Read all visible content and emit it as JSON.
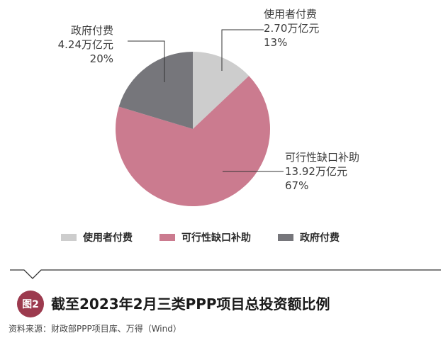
{
  "colors": {
    "government": "#76767b",
    "user": "#cdcdcd",
    "viability": "#cb7b8f",
    "badge": "#9c3a4e",
    "leader": "#333333",
    "rule": "#333333"
  },
  "chart_data": {
    "type": "pie",
    "title": "截至2023年2月三类PPP项目总投资额比例",
    "slices": [
      {
        "label": "使用者付费",
        "value": 2.7,
        "value_text": "2.70万亿元",
        "percent": 13,
        "percent_text": "13%",
        "color": "#cdcdcd"
      },
      {
        "label": "可行性缺口补助",
        "value": 13.92,
        "value_text": "13.92万亿元",
        "percent": 67,
        "percent_text": "67%",
        "color": "#cb7b8f"
      },
      {
        "label": "政府付费",
        "value": 4.24,
        "value_text": "4.24万亿元",
        "percent": 20,
        "percent_text": "20%",
        "color": "#76767b"
      }
    ],
    "legend": [
      "使用者付费",
      "可行性缺口补助",
      "政府付费"
    ],
    "legend_position": "bottom"
  },
  "callouts": {
    "user": {
      "label": "使用者付费",
      "value": "2.70万亿元",
      "percent": "13%"
    },
    "government": {
      "label": "政府付费",
      "value": "4.24万亿元",
      "percent": "20%"
    },
    "viability": {
      "label": "可行性缺口补助",
      "value": "13.92万亿元",
      "percent": "67%"
    }
  },
  "legend": [
    {
      "label": "使用者付费",
      "color": "#cdcdcd"
    },
    {
      "label": "可行性缺口补助",
      "color": "#cb7b8f"
    },
    {
      "label": "政府付费",
      "color": "#76767b"
    }
  ],
  "figure": {
    "badge": "图2",
    "title": "截至2023年2月三类PPP项目总投资额比例",
    "source": "资料来源：财政部PPP项目库、万得（Wind）"
  }
}
